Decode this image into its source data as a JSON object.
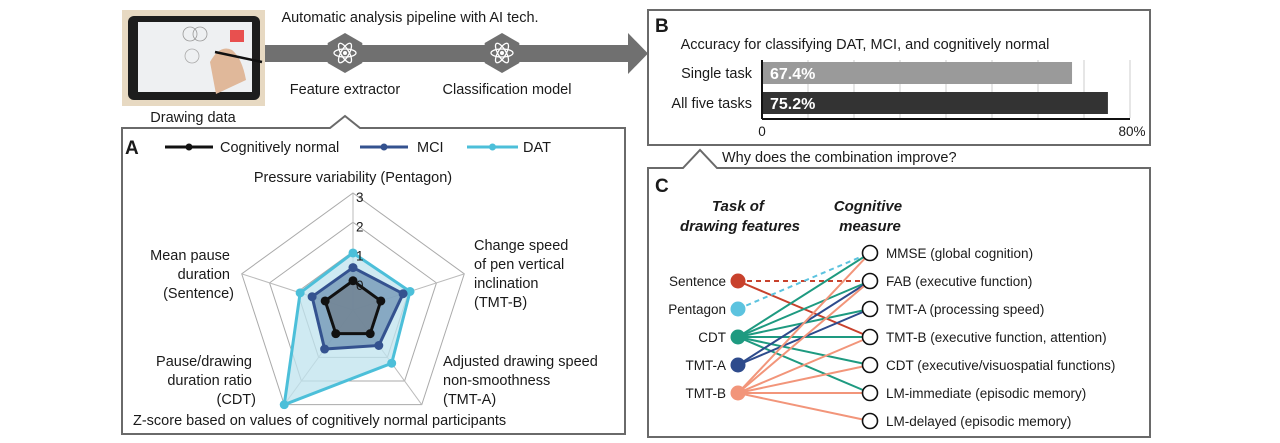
{
  "pipeline": {
    "title": "Automatic analysis pipeline with AI tech.",
    "input_label": "Drawing data",
    "steps": [
      {
        "label": "Feature extractor",
        "icon": "atom-icon"
      },
      {
        "label": "Classification model",
        "icon": "atom-icon"
      }
    ],
    "arrow_color": "#707070"
  },
  "panel_a": {
    "letter": "A",
    "legend": [
      {
        "label": "Cognitively normal",
        "color": "#111111"
      },
      {
        "label": "MCI",
        "color": "#34528f"
      },
      {
        "label": "DAT",
        "color": "#4cbfd9"
      }
    ],
    "axes": [
      {
        "lines": [
          "Pressure variability (Pentagon)"
        ]
      },
      {
        "lines": [
          "Change speed",
          "of pen vertical",
          "inclination",
          "(TMT-B)"
        ]
      },
      {
        "lines": [
          "Adjusted drawing speed",
          "non-smoothness",
          "(TMT-A)"
        ]
      },
      {
        "lines": [
          "Pause/drawing",
          "duration ratio",
          "(CDT)"
        ]
      },
      {
        "lines": [
          "Mean pause",
          "duration",
          "(Sentence)"
        ]
      }
    ],
    "ticks": [
      "3",
      "2",
      "1",
      "0"
    ],
    "footnote": "Z-score based on values of cognitively normal participants"
  },
  "question": "Why does the combination improve?",
  "panel_b": {
    "letter": "B"
  },
  "panel_c": {
    "letter": "C",
    "left_header": [
      "Task of",
      "drawing features"
    ],
    "right_header": [
      "Cognitive",
      "measure"
    ],
    "tasks": [
      {
        "label": "Sentence",
        "color": "#c8412c"
      },
      {
        "label": "Pentagon",
        "color": "#5cc3df"
      },
      {
        "label": "CDT",
        "color": "#1e9a80"
      },
      {
        "label": "TMT-A",
        "color": "#2e4b8c"
      },
      {
        "label": "TMT-B",
        "color": "#f2957a"
      }
    ],
    "measures": [
      "MMSE (global cognition)",
      "FAB (executive function)",
      "TMT-A (processing speed)",
      "TMT-B (executive function, attention)",
      "CDT (executive/visuospatial functions)",
      "LM-immediate (episodic memory)",
      "LM-delayed (episodic memory)"
    ],
    "edges": [
      {
        "task": "Sentence",
        "measure": "FAB (executive function)",
        "style": "dashed"
      },
      {
        "task": "Sentence",
        "measure": "TMT-B (executive function, attention)",
        "style": "solid"
      },
      {
        "task": "Pentagon",
        "measure": "MMSE (global cognition)",
        "style": "dashed"
      },
      {
        "task": "CDT",
        "measure": "MMSE (global cognition)",
        "style": "solid"
      },
      {
        "task": "CDT",
        "measure": "FAB (executive function)",
        "style": "solid"
      },
      {
        "task": "CDT",
        "measure": "TMT-A (processing speed)",
        "style": "solid"
      },
      {
        "task": "CDT",
        "measure": "TMT-B (executive function, attention)",
        "style": "solid"
      },
      {
        "task": "CDT",
        "measure": "CDT (executive/visuospatial functions)",
        "style": "solid"
      },
      {
        "task": "CDT",
        "measure": "LM-immediate (episodic memory)",
        "style": "solid"
      },
      {
        "task": "TMT-A",
        "measure": "FAB (executive function)",
        "style": "solid"
      },
      {
        "task": "TMT-A",
        "measure": "TMT-A (processing speed)",
        "style": "solid"
      },
      {
        "task": "TMT-B",
        "measure": "MMSE (global cognition)",
        "style": "solid"
      },
      {
        "task": "TMT-B",
        "measure": "FAB (executive function)",
        "style": "solid"
      },
      {
        "task": "TMT-B",
        "measure": "TMT-B (executive function, attention)",
        "style": "solid"
      },
      {
        "task": "TMT-B",
        "measure": "CDT (executive/visuospatial functions)",
        "style": "solid"
      },
      {
        "task": "TMT-B",
        "measure": "LM-immediate (episodic memory)",
        "style": "solid"
      },
      {
        "task": "TMT-B",
        "measure": "LM-delayed (episodic memory)",
        "style": "solid"
      }
    ]
  },
  "chart_data": [
    {
      "type": "radar",
      "axes": [
        "Pressure variability (Pentagon)",
        "Change speed of pen vertical inclination (TMT-B)",
        "Adjusted drawing speed non-smoothness (TMT-A)",
        "Pause/drawing duration ratio (CDT)",
        "Mean pause duration (Sentence)"
      ],
      "range": [
        -1,
        3
      ],
      "ticks": [
        0,
        1,
        2,
        3
      ],
      "series": [
        {
          "name": "Cognitively normal",
          "values": [
            0,
            0,
            0,
            0,
            0
          ],
          "color": "#111111",
          "fill": "#6f7f8c"
        },
        {
          "name": "MCI",
          "values": [
            0.45,
            0.8,
            0.5,
            0.65,
            0.47
          ],
          "color": "#34528f",
          "fill": "#6f93b3"
        },
        {
          "name": "DAT",
          "values": [
            0.95,
            1.05,
            1.25,
            3.0,
            0.9
          ],
          "color": "#4cbfd9",
          "fill": "#bfe3ee"
        }
      ],
      "legend": "top",
      "note": "Z-score based on values of cognitively normal participants"
    },
    {
      "type": "bar",
      "orientation": "horizontal",
      "title": "Accuracy for classifying DAT, MCI, and cognitively normal",
      "categories": [
        "Single task",
        "All five tasks"
      ],
      "values": [
        67.4,
        75.2
      ],
      "value_labels": [
        "67.4%",
        "75.2%"
      ],
      "colors": [
        "#9a9a9a",
        "#333333"
      ],
      "xlim": [
        0,
        80
      ],
      "tick_labels": [
        "0",
        "80%"
      ],
      "grid": true
    }
  ]
}
